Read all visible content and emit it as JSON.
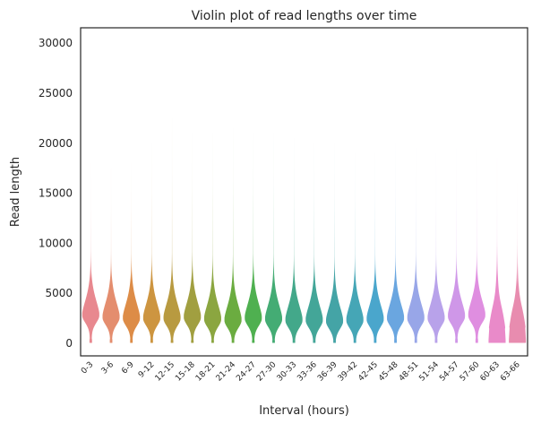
{
  "chart_data": {
    "type": "violin",
    "title": "Violin plot of read lengths over time",
    "xlabel": "Interval (hours)",
    "ylabel": "Read length",
    "ylim": [
      -1300,
      31500
    ],
    "yticks": [
      0,
      5000,
      10000,
      15000,
      20000,
      25000,
      30000
    ],
    "grid": false,
    "legend": "none",
    "categories": [
      "0-3",
      "3-6",
      "6-9",
      "9-12",
      "12-15",
      "15-18",
      "18-21",
      "21-24",
      "24-27",
      "27-30",
      "30-33",
      "33-36",
      "36-39",
      "39-42",
      "42-45",
      "45-48",
      "48-51",
      "51-54",
      "54-57",
      "57-60",
      "60-63",
      "63-66"
    ],
    "series": [
      {
        "category": "0-3",
        "min": 0,
        "max": 18000,
        "peak": 2800,
        "color": "#e8888f"
      },
      {
        "category": "3-6",
        "min": 0,
        "max": 17500,
        "peak": 2600,
        "color": "#e48d6e"
      },
      {
        "category": "6-9",
        "min": 0,
        "max": 18000,
        "peak": 2500,
        "color": "#dd8c47"
      },
      {
        "category": "9-12",
        "min": 0,
        "max": 20000,
        "peak": 2500,
        "color": "#cd9540"
      },
      {
        "category": "12-15",
        "min": 0,
        "max": 22500,
        "peak": 2500,
        "color": "#b89a40"
      },
      {
        "category": "15-18",
        "min": 0,
        "max": 21000,
        "peak": 2600,
        "color": "#a19f40"
      },
      {
        "category": "18-21",
        "min": 0,
        "max": 21000,
        "peak": 2400,
        "color": "#8ba640"
      },
      {
        "category": "21-24",
        "min": 0,
        "max": 21500,
        "peak": 2300,
        "color": "#6bac40"
      },
      {
        "category": "24-27",
        "min": 0,
        "max": 21000,
        "peak": 2500,
        "color": "#4fb050"
      },
      {
        "category": "27-30",
        "min": 0,
        "max": 21000,
        "peak": 2400,
        "color": "#44ac74"
      },
      {
        "category": "30-33",
        "min": 0,
        "max": 20500,
        "peak": 2300,
        "color": "#43a88a"
      },
      {
        "category": "33-36",
        "min": 0,
        "max": 20000,
        "peak": 2300,
        "color": "#43a698"
      },
      {
        "category": "36-39",
        "min": 0,
        "max": 20000,
        "peak": 2200,
        "color": "#44a4a6"
      },
      {
        "category": "39-42",
        "min": 0,
        "max": 19000,
        "peak": 2300,
        "color": "#45a6b6"
      },
      {
        "category": "42-45",
        "min": 0,
        "max": 19000,
        "peak": 2400,
        "color": "#4aa6cc"
      },
      {
        "category": "45-48",
        "min": 0,
        "max": 20000,
        "peak": 2500,
        "color": "#6aa6e0"
      },
      {
        "category": "48-51",
        "min": 0,
        "max": 19500,
        "peak": 2500,
        "color": "#98a6e8"
      },
      {
        "category": "51-54",
        "min": 0,
        "max": 19000,
        "peak": 2500,
        "color": "#b8a2ea"
      },
      {
        "category": "54-57",
        "min": 0,
        "max": 19500,
        "peak": 2700,
        "color": "#cf97e8"
      },
      {
        "category": "57-60",
        "min": 0,
        "max": 19500,
        "peak": 2800,
        "color": "#df8ee0"
      },
      {
        "category": "60-63",
        "min": 0,
        "max": 18500,
        "peak": 800,
        "color": "#e98ac9"
      },
      {
        "category": "63-66",
        "min": 0,
        "max": 16000,
        "peak": 400,
        "color": "#e88caf"
      }
    ]
  }
}
